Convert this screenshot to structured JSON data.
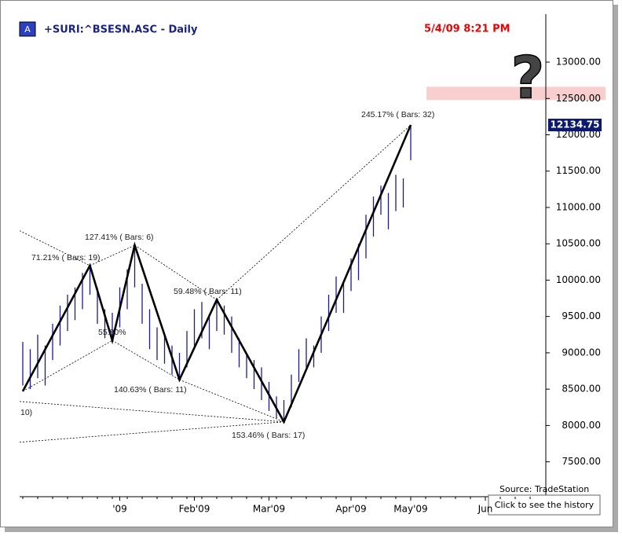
{
  "chart_data": {
    "type": "ohlc",
    "title": "+SURI:^BSESN.ASC - Daily",
    "badge": "A",
    "timestamp": "5/4/09 8:21 PM",
    "source": "Source: TradeStation",
    "button": "Click to see the history",
    "question": "?",
    "color": "#1c1c8c",
    "categories": [
      null,
      null,
      null,
      null,
      null,
      null,
      null,
      null,
      null,
      null,
      null,
      null,
      null,
      "'09",
      null,
      null,
      null,
      null,
      null,
      null,
      null,
      null,
      null,
      "Feb'09",
      null,
      null,
      null,
      null,
      null,
      null,
      null,
      null,
      null,
      "Mar'09",
      null,
      null,
      null,
      null,
      null,
      null,
      null,
      null,
      null,
      null,
      "Apr'09",
      null,
      null,
      null,
      null,
      null,
      null,
      null,
      "May'09",
      null,
      null,
      null,
      null,
      null,
      null,
      null,
      null,
      null,
      "Jun",
      null,
      null,
      null,
      null,
      null,
      null,
      null
    ],
    "series": [
      {
        "name": "high",
        "values": [
          9150,
          9050,
          9250,
          9100,
          9400,
          9650,
          9800,
          9900,
          10100,
          10200,
          9900,
          9600,
          9550,
          9900,
          10150,
          10480,
          9950,
          9600,
          9350,
          9250,
          9100,
          9000,
          9300,
          9600,
          9700,
          9500,
          9730,
          9650,
          9500,
          9200,
          9000,
          8900,
          8800,
          8600,
          8400,
          8350,
          8700,
          9050,
          9200,
          9100,
          9500,
          9800,
          10050,
          9950,
          10300,
          10500,
          10900,
          11150,
          11300,
          11200,
          11450,
          11400,
          12134.75,
          null,
          null,
          null,
          null,
          null,
          null,
          null,
          null,
          null,
          null,
          null,
          null,
          null,
          null,
          null,
          null,
          null
        ]
      },
      {
        "name": "low",
        "values": [
          8550,
          8500,
          8650,
          8550,
          8900,
          9100,
          9300,
          9450,
          9600,
          9800,
          9400,
          9200,
          9150,
          9350,
          9600,
          9900,
          9400,
          9050,
          8900,
          8850,
          8700,
          8630,
          8800,
          9100,
          9200,
          9050,
          9300,
          9250,
          9000,
          8800,
          8650,
          8500,
          8350,
          8200,
          8100,
          8050,
          8250,
          8600,
          8800,
          8800,
          9000,
          9300,
          9550,
          9550,
          9850,
          10000,
          10300,
          10600,
          10900,
          10700,
          10950,
          11000,
          11650,
          null,
          null,
          null,
          null,
          null,
          null,
          null,
          null,
          null,
          null,
          null,
          null,
          null,
          null,
          null,
          null,
          null
        ]
      }
    ],
    "last_price": {
      "value": 12134.75,
      "label": "12134.75"
    },
    "zigzag": {
      "x": [
        0,
        9,
        12,
        15,
        21,
        26,
        35,
        52
      ],
      "values": [
        8470,
        10200,
        9170,
        10480,
        8630,
        9730,
        8050,
        12134.75
      ]
    },
    "annotations": [
      "71.21%  ( Bars: 19)",
      "127.41%  ( Bars: 6)",
      "55.80%",
      "140.63%  ( Bars: 11)",
      "59.48%  ( Bars: 11)",
      "153.46%  ( Bars: 17)",
      "245.17%  ( Bars: 32)",
      "10)"
    ],
    "zone": [
      12480,
      12660
    ],
    "ylim": [
      7020,
      13660
    ],
    "yticks": [
      {
        "value": 7500,
        "label": "7500.00"
      },
      {
        "value": 8000,
        "label": "8000.00"
      },
      {
        "value": 8500,
        "label": "8500.00"
      },
      {
        "value": 9000,
        "label": "9000.00"
      },
      {
        "value": 9500,
        "label": "9500.00"
      },
      {
        "value": 10000,
        "label": "10000.00"
      },
      {
        "value": 10500,
        "label": "10500.00"
      },
      {
        "value": 11000,
        "label": "11000.00"
      },
      {
        "value": 11500,
        "label": "11500.00"
      },
      {
        "value": 12000,
        "label": "12000.00"
      },
      {
        "value": 12500,
        "label": "12500.00"
      },
      {
        "value": 13000,
        "label": "13000.00"
      }
    ]
  }
}
